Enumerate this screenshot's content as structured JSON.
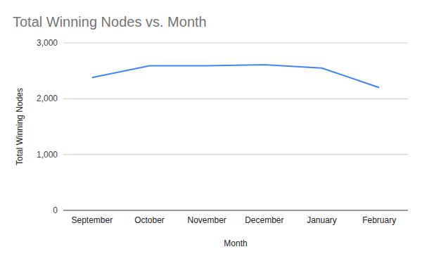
{
  "chart_data": {
    "type": "line",
    "title": "Total Winning Nodes vs. Month",
    "x_label": "Month",
    "y_label": "Total Winning Nodes",
    "categories": [
      "September",
      "October",
      "November",
      "December",
      "January",
      "February"
    ],
    "values": [
      2380,
      2590,
      2590,
      2610,
      2550,
      2200
    ],
    "color": "#4285f4",
    "ylim": [
      0,
      3000
    ],
    "yticks": [
      0,
      {
        "value": 1000,
        "label": "1,000"
      },
      {
        "value": 2000,
        "label": "2,000"
      },
      {
        "value": 3000,
        "label": "3,000"
      }
    ],
    "grid": true
  }
}
